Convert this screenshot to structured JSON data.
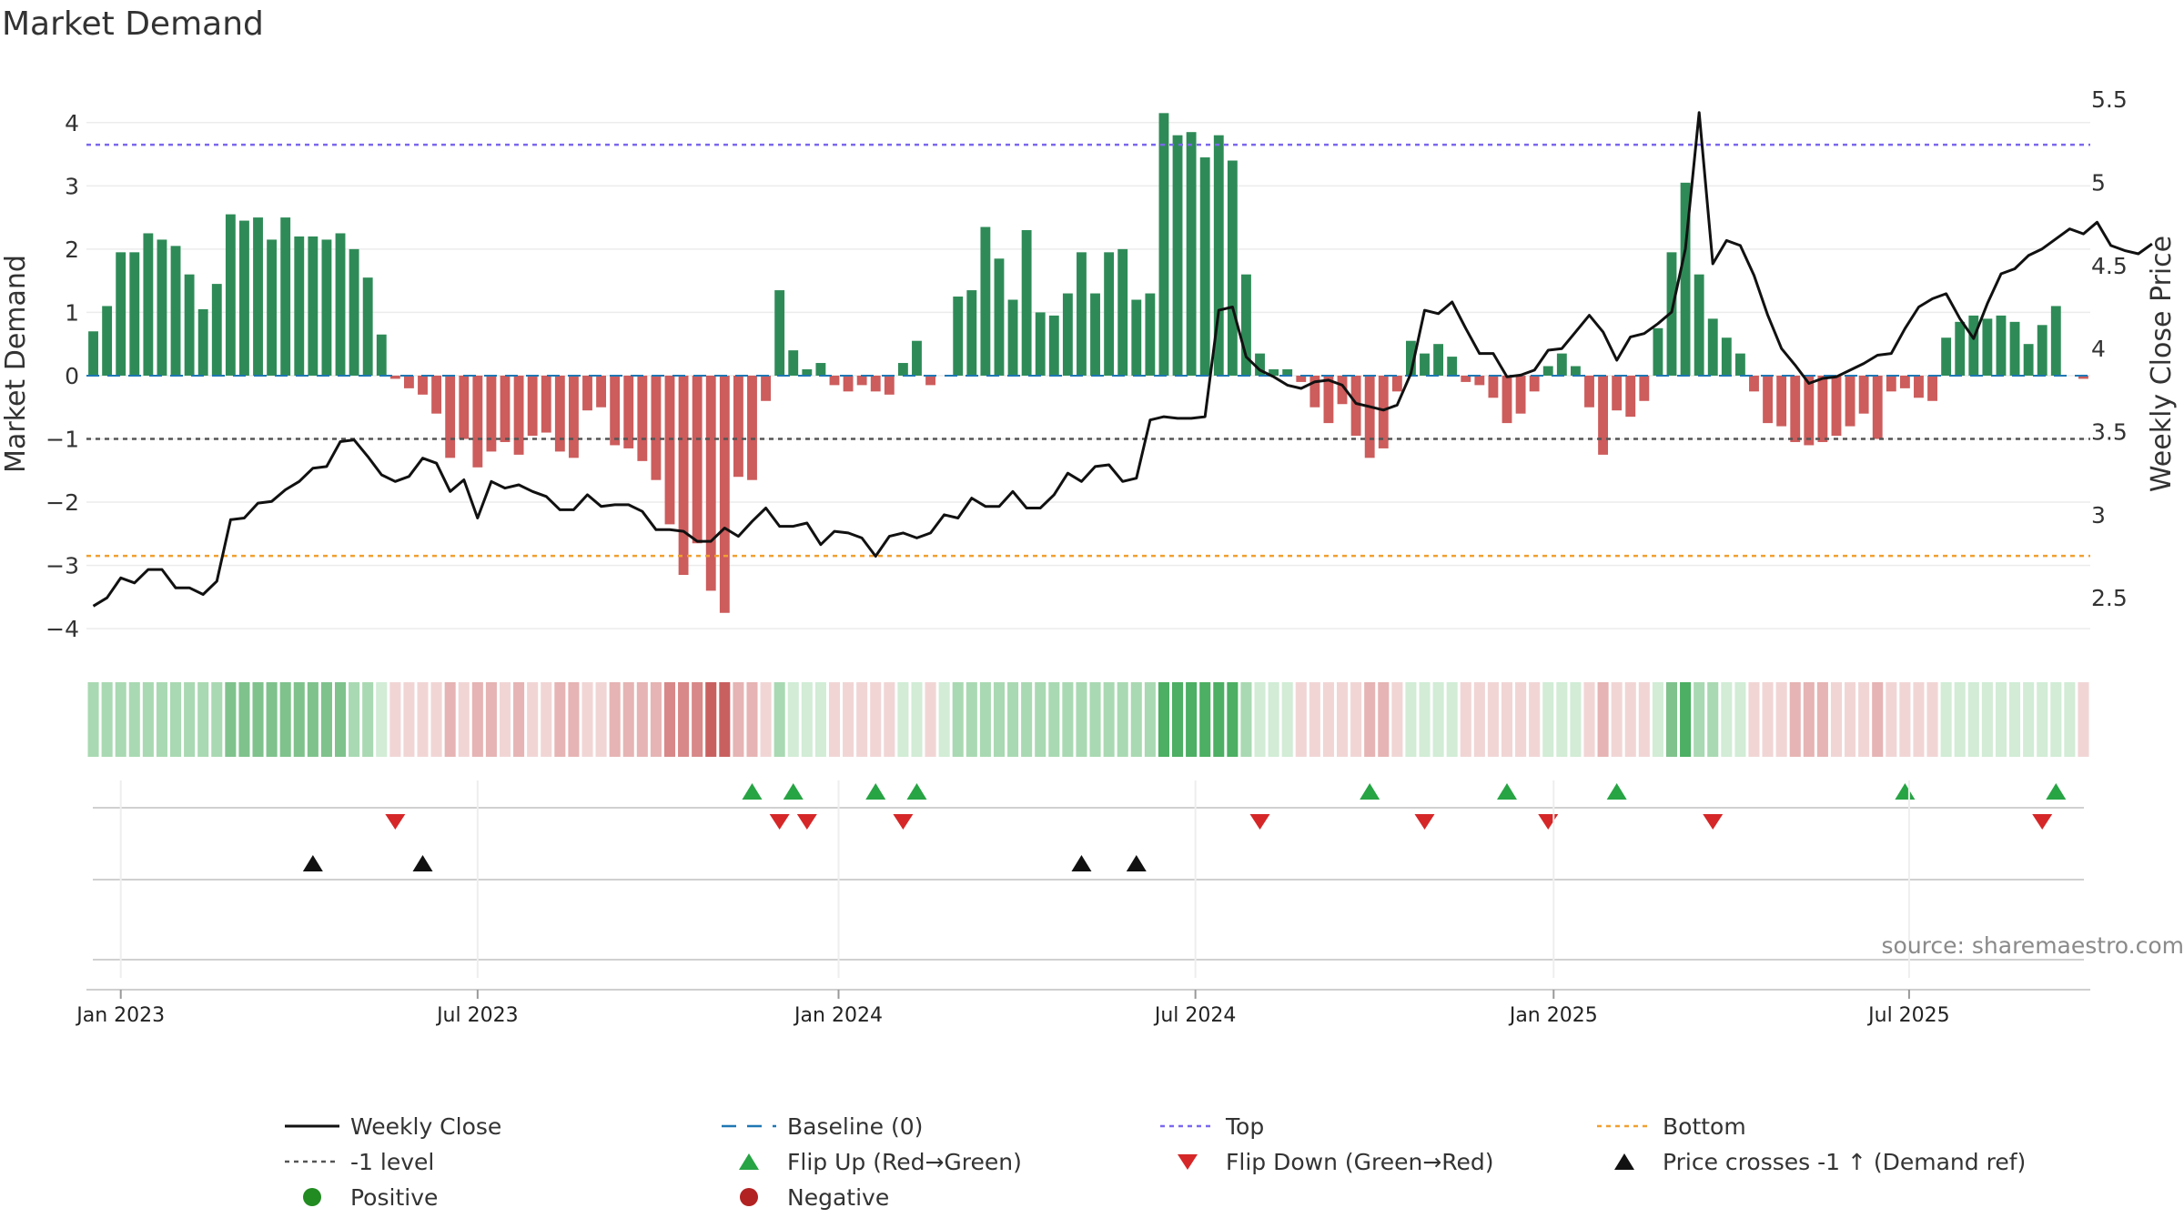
{
  "chart_data": {
    "type": "bar",
    "title": "Market Demand",
    "ylabel_left": "Market Demand",
    "ylabel_right": "Weekly Close Price",
    "ylim_left": [
      -4.3,
      4.5
    ],
    "ylim_right": [
      2.2,
      5.55
    ],
    "yticks_left": [
      4,
      3,
      2,
      1,
      0,
      -1,
      -2,
      -3,
      -4
    ],
    "ytick_labels_left": [
      "4",
      "3",
      "2",
      "1",
      "0",
      "−1",
      "−2",
      "−3",
      "−4"
    ],
    "yticks_right": [
      5.5,
      5,
      4.5,
      4,
      3.5,
      3,
      2.5
    ],
    "ytick_labels_right": [
      "5.5",
      "5",
      "4.5",
      "4",
      "3.5",
      "3",
      "2.5"
    ],
    "x_ticks": [
      {
        "label": "Jan 2023",
        "week": 2
      },
      {
        "label": "Jul 2023",
        "week": 28
      },
      {
        "label": "Jan 2024",
        "week": 54.3
      },
      {
        "label": "Jul 2024",
        "week": 80.3
      },
      {
        "label": "Jan 2025",
        "week": 106.4
      },
      {
        "label": "Jul 2025",
        "week": 132.3
      }
    ],
    "reference_lines": {
      "baseline": 0,
      "top": 3.65,
      "minus_one": -1,
      "bottom": -2.85
    },
    "demand": [
      0.7,
      1.1,
      1.95,
      1.95,
      2.25,
      2.15,
      2.05,
      1.6,
      1.05,
      1.45,
      2.55,
      2.45,
      2.5,
      2.15,
      2.5,
      2.2,
      2.2,
      2.15,
      2.25,
      2.0,
      1.55,
      0.65,
      -0.05,
      -0.2,
      -0.3,
      -0.6,
      -1.3,
      -1.0,
      -1.45,
      -1.2,
      -1.05,
      -1.25,
      -0.95,
      -0.9,
      -1.2,
      -1.3,
      -0.55,
      -0.5,
      -1.1,
      -1.15,
      -1.35,
      -1.65,
      -2.35,
      -3.15,
      -2.65,
      -3.4,
      -3.75,
      -1.6,
      -1.65,
      -0.4,
      1.35,
      0.4,
      0.1,
      0.2,
      -0.15,
      -0.25,
      -0.15,
      -0.25,
      -0.3,
      0.2,
      0.55,
      -0.15,
      0,
      1.25,
      1.35,
      2.35,
      1.85,
      1.2,
      2.3,
      1.0,
      0.95,
      1.3,
      1.95,
      1.3,
      1.95,
      2.0,
      1.2,
      1.3,
      4.15,
      3.8,
      3.85,
      3.45,
      3.8,
      3.4,
      1.6,
      0.35,
      0.1,
      0.1,
      -0.1,
      -0.5,
      -0.75,
      -0.45,
      -0.95,
      -1.3,
      -1.15,
      -0.25,
      0.55,
      0.35,
      0.5,
      0.3,
      -0.1,
      -0.15,
      -0.35,
      -0.75,
      -0.6,
      -0.25,
      0.15,
      0.35,
      0.15,
      -0.5,
      -1.25,
      -0.55,
      -0.65,
      -0.4,
      0.75,
      1.95,
      3.05,
      1.6,
      0.9,
      0.6,
      0.35,
      -0.25,
      -0.75,
      -0.8,
      -1.05,
      -1.1,
      -1.05,
      -0.95,
      -0.8,
      -0.6,
      -1.0,
      -0.25,
      -0.2,
      -0.35,
      -0.4,
      0.6,
      0.85,
      0.95,
      0.9,
      0.95,
      0.85,
      0.5,
      0.8,
      1.1,
      0,
      -0.05
    ],
    "close": [
      2.45,
      2.5,
      2.62,
      2.59,
      2.67,
      2.67,
      2.56,
      2.56,
      2.52,
      2.6,
      2.97,
      2.98,
      3.07,
      3.08,
      3.15,
      3.2,
      3.28,
      3.29,
      3.44,
      3.45,
      3.35,
      3.24,
      3.2,
      3.23,
      3.34,
      3.31,
      3.14,
      3.21,
      2.98,
      3.2,
      3.16,
      3.18,
      3.14,
      3.11,
      3.03,
      3.03,
      3.12,
      3.05,
      3.06,
      3.06,
      3.02,
      2.91,
      2.91,
      2.9,
      2.84,
      2.84,
      2.92,
      2.87,
      2.96,
      3.04,
      2.93,
      2.93,
      2.95,
      2.82,
      2.9,
      2.89,
      2.86,
      2.75,
      2.87,
      2.89,
      2.86,
      2.89,
      3.0,
      2.98,
      3.1,
      3.05,
      3.05,
      3.14,
      3.04,
      3.04,
      3.12,
      3.25,
      3.2,
      3.29,
      3.3,
      3.2,
      3.22,
      3.57,
      3.59,
      3.58,
      3.58,
      3.59,
      4.23,
      4.25,
      3.95,
      3.87,
      3.83,
      3.78,
      3.76,
      3.8,
      3.81,
      3.78,
      3.67,
      3.65,
      3.63,
      3.66,
      3.85,
      4.23,
      4.21,
      4.28,
      4.12,
      3.97,
      3.97,
      3.83,
      3.84,
      3.87,
      3.99,
      4.0,
      4.1,
      4.2,
      4.1,
      3.93,
      4.07,
      4.09,
      4.15,
      4.22,
      4.6,
      5.42,
      4.51,
      4.65,
      4.62,
      4.44,
      4.2,
      4.0,
      3.9,
      3.79,
      3.82,
      3.83,
      3.87,
      3.91,
      3.96,
      3.97,
      4.12,
      4.25,
      4.3,
      4.33,
      4.18,
      4.06,
      4.27,
      4.45,
      4.48,
      4.56,
      4.6,
      4.66,
      4.72,
      4.69,
      4.76,
      4.62,
      4.59,
      4.57,
      4.63
    ],
    "color_strip": [
      2,
      2,
      2,
      2,
      2,
      2,
      2,
      2,
      2,
      2,
      3,
      3,
      3,
      3,
      3,
      3,
      3,
      3,
      3,
      2,
      2,
      1,
      -1,
      -1,
      -1,
      -1,
      -2,
      -1,
      -2,
      -2,
      -1,
      -2,
      -1,
      -1,
      -2,
      -2,
      -1,
      -1,
      -2,
      -2,
      -2,
      -2,
      -3,
      -3,
      -3,
      -4,
      -4,
      -2,
      -2,
      -1,
      2,
      1,
      1,
      1,
      -1,
      -1,
      -1,
      -1,
      -1,
      1,
      1,
      -1,
      1,
      2,
      2,
      2,
      2,
      2,
      2,
      2,
      2,
      2,
      2,
      2,
      2,
      2,
      2,
      2,
      4,
      4,
      4,
      4,
      4,
      4,
      2,
      1,
      1,
      1,
      -1,
      -1,
      -1,
      -1,
      -1,
      -2,
      -2,
      -1,
      1,
      1,
      1,
      1,
      -1,
      -1,
      -1,
      -1,
      -1,
      -1,
      1,
      1,
      1,
      -1,
      -2,
      -1,
      -1,
      -1,
      1,
      3,
      4,
      2,
      2,
      1,
      1,
      -1,
      -1,
      -1,
      -2,
      -2,
      -2,
      -1,
      -1,
      -1,
      -2,
      -1,
      -1,
      -1,
      -1,
      1,
      1,
      1,
      1,
      1,
      1,
      1,
      1,
      1,
      1,
      -1
    ],
    "flip_up_weeks": [
      48,
      51,
      57,
      60,
      93,
      103,
      111,
      132,
      143
    ],
    "flip_down_weeks": [
      22,
      50,
      52,
      59,
      85,
      97,
      106,
      118,
      142
    ],
    "price_cross_weeks": [
      16,
      24,
      72,
      76
    ],
    "source_label": "source: sharemaestro.com",
    "legend": [
      {
        "label": "Weekly Close",
        "symbol": "line",
        "color": "#111111"
      },
      {
        "label": "Baseline (0)",
        "symbol": "dash",
        "color": "#1f77b4"
      },
      {
        "label": "Top",
        "symbol": "dotted",
        "color": "#7b68ee"
      },
      {
        "label": "Bottom",
        "symbol": "dotted",
        "color": "#f0a030"
      },
      {
        "label": "-1 level",
        "symbol": "dotted",
        "color": "#555555"
      },
      {
        "label": "Flip Up (Red→Green)",
        "symbol": "triangle-up",
        "color": "#27a444"
      },
      {
        "label": "Flip Down (Green→Red)",
        "symbol": "triangle-down",
        "color": "#d62728"
      },
      {
        "label": "Price crosses -1 ↑ (Demand ref)",
        "symbol": "triangle-up",
        "color": "#111111"
      },
      {
        "label": "Positive",
        "symbol": "circle",
        "color": "#228b22"
      },
      {
        "label": "Negative",
        "symbol": "circle",
        "color": "#b22222"
      }
    ]
  },
  "colors": {
    "positive_bar": "#2e8b57",
    "negative_bar": "#cd5c5c",
    "close_line": "#111111",
    "baseline": "#1f77b4",
    "top": "#7b68ee",
    "bottom": "#f0a030",
    "minus_one": "#555555",
    "flip_up": "#27a444",
    "flip_down": "#d62728",
    "price_cross": "#111111"
  }
}
